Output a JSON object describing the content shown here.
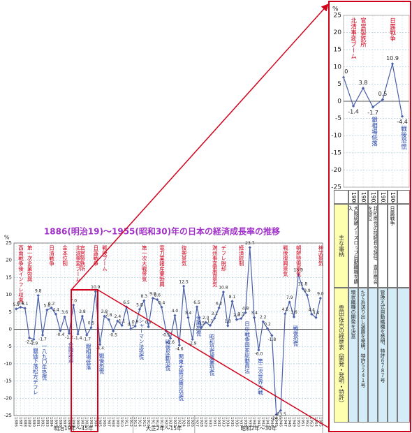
{
  "chart_data": {
    "type": "line",
    "title": "1886(明治19)～1955(昭和30)年の日本の経済成長率の推移",
    "y_unit": "%",
    "color": "#4a5fa8",
    "grid": true,
    "ylim": [
      -25,
      25
    ],
    "yticks": [
      -25,
      -20,
      -15,
      -10,
      -5,
      0,
      5,
      10,
      15,
      20,
      25
    ],
    "categories": [
      "1886",
      "1887",
      "1888",
      "1889",
      "1890",
      "1891",
      "1892",
      "1893",
      "1894",
      "1895",
      "1896",
      "1897",
      "1898",
      "1899",
      "1900",
      "1901",
      "1902",
      "1903",
      "1904",
      "1905",
      "1906",
      "1907",
      "1908",
      "1909",
      "1910",
      "1911",
      "1912",
      "1913",
      "1914",
      "1915",
      "1916",
      "1917",
      "1918",
      "1919",
      "1920",
      "1921",
      "1922",
      "1923",
      "1924",
      "1925",
      "1926",
      "1927",
      "1928",
      "1929",
      "1930",
      "1931",
      "1932",
      "1933",
      "1934",
      "1935",
      "1936",
      "1937",
      "1938",
      "1939",
      "1940",
      "1941",
      "1942",
      "1943",
      "1944",
      "1945",
      "1946",
      "1947",
      "1948",
      "1949",
      "1950",
      "1951",
      "1952",
      "1953",
      "1954",
      "1955"
    ],
    "values": [
      5.9,
      6.4,
      6.1,
      -2.5,
      -2.9,
      9.8,
      -1.7,
      5.6,
      6.2,
      4.4,
      -0.4,
      3.6,
      -1.2,
      7,
      -1.4,
      3.8,
      -1.7,
      0.5,
      10.9,
      -4.4,
      3.8,
      2.8,
      -0.5,
      2.4,
      1.1,
      6.5,
      0.1,
      0.9,
      5.8,
      8.3,
      0.7,
      9,
      8.6,
      6.4,
      -0.5,
      -2.6,
      4,
      -4.6,
      12.5,
      3.4,
      -2.9,
      6.5,
      0.5,
      2,
      1.1,
      3.2,
      6.2,
      10.8,
      1,
      8.1,
      2.8,
      3.1,
      4.8,
      23.7,
      3.4,
      -6,
      2.2,
      0.2,
      -1.8,
      -24.7,
      -23.5,
      4.5,
      7.9,
      3.6,
      15.9,
      11.8,
      9.9,
      4.4,
      3.4,
      9
    ],
    "value_labels": [
      "5.9",
      "6.4",
      "6.1",
      "-2.5",
      "-2.9",
      "9.8",
      "-1.7",
      "5.6",
      "6.2",
      "4.4",
      "-0.4",
      "3.6",
      "-1.2",
      "7.0",
      "-1.4",
      "3.8",
      "-1.7",
      "0.5",
      "10.9",
      "-4.4",
      "3.8",
      "2.8",
      "-0.5",
      "2.4",
      "1.1",
      "6.5",
      "0.1",
      "0.9",
      "5.8",
      "8.3",
      "0.7",
      "9.0",
      "8.6",
      "6.4",
      "-0.5",
      "-2.6",
      "4.0",
      "-4.6",
      "12.5",
      "3.4",
      "-2.9",
      "6.5",
      "0.5",
      "2.0",
      "1.1",
      "3.2",
      "6.2",
      "10.8",
      "1.0",
      "8.1",
      "2.8",
      "3.1",
      "4.8",
      "23.7",
      "3.4",
      "-6.0",
      "2.2",
      "0.2",
      "-1.8",
      "-24.7",
      "-23.5",
      "4.5",
      "7.9",
      "3.6",
      "15.9",
      "11.8",
      "9.9",
      "4.4",
      "3.4",
      "9.0"
    ],
    "eras": [
      {
        "text": "明治19年〜45年",
        "from": "1886",
        "to": "1912"
      },
      {
        "text": "大正2年〜15年",
        "from": "1913",
        "to": "1926"
      },
      {
        "text": "昭和2年〜30年",
        "from": "1927",
        "to": "1955"
      }
    ],
    "annotations": [
      {
        "year": "1887",
        "text": "西南戦争後インフレ収束",
        "color": "#d0021b"
      },
      {
        "year": "1889",
        "text": "第一次企業勃興",
        "color": "#d0021b"
      },
      {
        "year": "1894",
        "text": "日清戦争",
        "color": "#d0021b"
      },
      {
        "year": "1897",
        "text": "金本位制",
        "color": "#d0021b"
      },
      {
        "year": "1900",
        "text": "北清事変ブーム",
        "color": "#d0021b"
      },
      {
        "year": "1901",
        "text": "官営製鉄所",
        "color": "#d0021b"
      },
      {
        "year": "1904",
        "text": "日露戦争",
        "color": "#d0021b"
      },
      {
        "year": "1906",
        "text": "戦後ブーム",
        "color": "#d0021b"
      },
      {
        "year": "1915",
        "text": "第一次大戦景気",
        "color": "#d0021b"
      },
      {
        "year": "1919",
        "text": "電力業諸産業勃興",
        "color": "#d0021b"
      },
      {
        "year": "1924",
        "text": "復興景気",
        "color": "#d0021b"
      },
      {
        "year": "1931",
        "text": "満州事変軍需景気",
        "color": "#d0021b"
      },
      {
        "year": "1933",
        "text": "デフレ脱却",
        "color": "#d0021b"
      },
      {
        "year": "1937",
        "text": "経済統制",
        "color": "#d0021b"
      },
      {
        "year": "1947",
        "text": "戦後復興景気",
        "color": "#d0021b"
      },
      {
        "year": "1950",
        "text": "朝鮮特需景気",
        "color": "#d0021b"
      },
      {
        "year": "1955",
        "text": "神武景気",
        "color": "#d0021b"
      },
      {
        "year": "1890",
        "text": "銀価下落松方デフレ",
        "color": "#1f3fa8"
      },
      {
        "year": "1892",
        "text": "一八九〇年恐慌",
        "color": "#1f3fa8"
      },
      {
        "year": "1898",
        "text": "金融逼迫",
        "color": "#1f3fa8"
      },
      {
        "year": "1902",
        "text": "銀相場低落",
        "color": "#1f3fa8"
      },
      {
        "year": "1905",
        "text": "戦後恐慌",
        "color": "#1f3fa8"
      },
      {
        "year": "1914",
        "text": "シャーマン法恐慌",
        "color": "#1f3fa8"
      },
      {
        "year": "1920",
        "text": "戦後反動恐慌",
        "color": "#1f3fa8"
      },
      {
        "year": "1923",
        "text": "関東大震災震災恐慌",
        "color": "#1f3fa8"
      },
      {
        "year": "1927",
        "text": "金融恐慌",
        "color": "#1f3fa8"
      },
      {
        "year": "1930",
        "text": "昭和恐慌農業恐慌",
        "color": "#1f3fa8"
      },
      {
        "year": "1938",
        "text": "日中戦争国家総動員法",
        "color": "#1f3fa8"
      },
      {
        "year": "1941",
        "text": "第二次世界大戦",
        "color": "#1f3fa8"
      },
      {
        "year": "1949",
        "text": "戦後恐慌",
        "color": "#1f3fa8"
      }
    ],
    "zoom": {
      "from": "1899",
      "to": "1905"
    },
    "table": {
      "columns": [
        "1900",
        "1901",
        "1902",
        "1903",
        "1904"
      ],
      "rows": [
        {
          "label": "主な事柄",
          "cells": [
            "大阪紡績ノースロップ自動織機を購入",
            null,
            "井桁商会の技師長を辞任、豊田商会を設立",
            null,
            "日露戦争"
          ]
        },
        {
          "label": "豊田佐吉の経歴表（開発・発明・特許）",
          "cells": [
            "環状織機の開発を決意",
            "たて糸送り出し装置を発明、特許５２４１号",
            null,
            "管換え式自動織機を発明、特許６７８７号",
            null
          ]
        }
      ]
    }
  }
}
